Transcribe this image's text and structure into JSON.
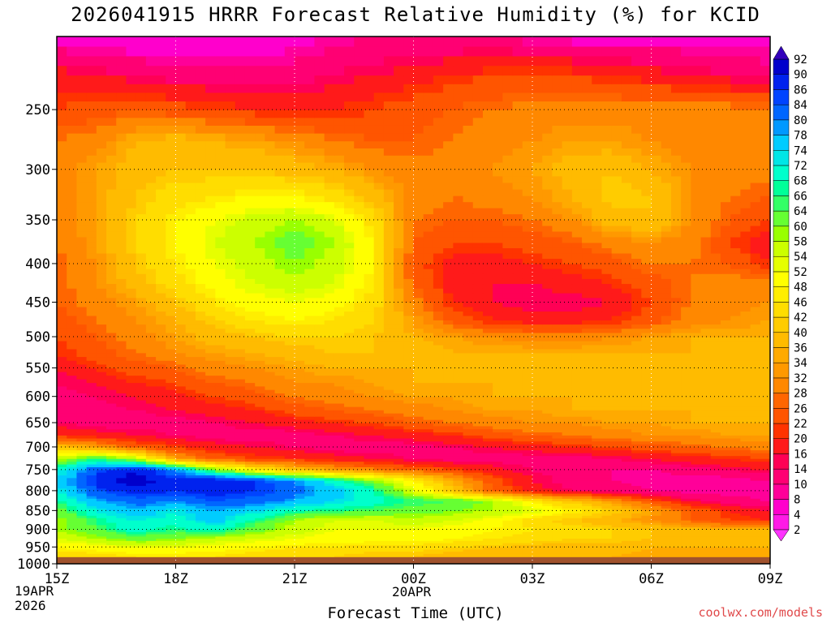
{
  "title": "2026041915 HRRR Forecast Relative Humidity (%) for KCID",
  "xlabel": "Forecast Time (UTC)",
  "credit": "coolwx.com/models",
  "x_date_left": [
    "19APR",
    "2026"
  ],
  "x_date_mid": "20APR",
  "chart_data": {
    "type": "heatmap",
    "title": "2026041915 HRRR Forecast Relative Humidity (%) for KCID",
    "xlabel": "Forecast Time (UTC)",
    "ylabel": "",
    "x_range_hours": [
      0,
      18
    ],
    "x_ticks": [
      {
        "h": 0,
        "label": "15Z"
      },
      {
        "h": 3,
        "label": "18Z"
      },
      {
        "h": 6,
        "label": "21Z"
      },
      {
        "h": 9,
        "label": "00Z"
      },
      {
        "h": 12,
        "label": "03Z"
      },
      {
        "h": 15,
        "label": "06Z"
      },
      {
        "h": 18,
        "label": "09Z"
      }
    ],
    "y_scale": "log-pressure (hPa), inverted",
    "y_range_hpa": [
      1000,
      200
    ],
    "y_ticks": [
      250,
      300,
      350,
      400,
      450,
      500,
      550,
      600,
      650,
      700,
      750,
      800,
      850,
      900,
      950,
      1000
    ],
    "grid": true,
    "surface_pressure_hpa": 980,
    "colorbar": {
      "position": "right",
      "levels": [
        2,
        4,
        8,
        10,
        14,
        16,
        20,
        22,
        26,
        28,
        32,
        34,
        36,
        40,
        42,
        46,
        48,
        52,
        54,
        58,
        60,
        64,
        66,
        68,
        72,
        74,
        78,
        80,
        84,
        86,
        90,
        92
      ],
      "colors": [
        "#ff33ff",
        "#ff1ae6",
        "#ff00cc",
        "#ff0099",
        "#ff0073",
        "#ff0055",
        "#ff1a1a",
        "#ff3300",
        "#ff5500",
        "#ff6600",
        "#ff8800",
        "#ff9900",
        "#ffaa00",
        "#ffbb00",
        "#ffcc00",
        "#ffdd00",
        "#ffee00",
        "#ffff00",
        "#e6ff00",
        "#ccff00",
        "#99ff00",
        "#66ff33",
        "#33ff66",
        "#00ff99",
        "#00ffcc",
        "#00e6e6",
        "#00ccff",
        "#0099ff",
        "#0066ff",
        "#0044ff",
        "#0022ee",
        "#0000cc",
        "#3300bb"
      ]
    },
    "hours": [
      0,
      1,
      2,
      3,
      4,
      5,
      6,
      7,
      8,
      9,
      10,
      11,
      12,
      13,
      14,
      15,
      16,
      17,
      18
    ],
    "pressure_levels_hpa": [
      975,
      950,
      925,
      900,
      875,
      850,
      825,
      800,
      775,
      750,
      725,
      700,
      675,
      650,
      625,
      600,
      575,
      550,
      525,
      500,
      475,
      450,
      425,
      400,
      375,
      350,
      325,
      300,
      275,
      250,
      225,
      200
    ],
    "rh_percent": [
      [
        44,
        44,
        46,
        46,
        46,
        44,
        42,
        42,
        40,
        40,
        38,
        36,
        36,
        36,
        36,
        34,
        34,
        34,
        36
      ],
      [
        48,
        50,
        52,
        52,
        50,
        48,
        46,
        46,
        44,
        44,
        42,
        40,
        38,
        38,
        38,
        36,
        36,
        36,
        36
      ],
      [
        54,
        58,
        62,
        60,
        56,
        54,
        52,
        50,
        50,
        50,
        48,
        46,
        44,
        42,
        42,
        40,
        40,
        40,
        40
      ],
      [
        58,
        64,
        70,
        66,
        70,
        62,
        56,
        52,
        52,
        52,
        50,
        48,
        46,
        44,
        42,
        40,
        38,
        36,
        36
      ],
      [
        58,
        66,
        72,
        70,
        76,
        66,
        58,
        54,
        54,
        56,
        54,
        50,
        44,
        40,
        36,
        32,
        26,
        22,
        20
      ],
      [
        62,
        72,
        78,
        72,
        78,
        74,
        68,
        66,
        64,
        62,
        60,
        58,
        54,
        48,
        42,
        34,
        26,
        20,
        16
      ],
      [
        66,
        78,
        82,
        80,
        84,
        82,
        78,
        74,
        70,
        66,
        64,
        58,
        48,
        40,
        32,
        24,
        16,
        12,
        10
      ],
      [
        72,
        84,
        88,
        86,
        88,
        86,
        82,
        76,
        68,
        54,
        40,
        26,
        18,
        14,
        12,
        10,
        8,
        8,
        8
      ],
      [
        74,
        88,
        92,
        88,
        90,
        86,
        80,
        70,
        60,
        48,
        36,
        24,
        16,
        12,
        10,
        8,
        8,
        8,
        10
      ],
      [
        70,
        84,
        90,
        80,
        62,
        48,
        40,
        34,
        30,
        26,
        22,
        18,
        14,
        12,
        10,
        10,
        12,
        14,
        16
      ],
      [
        56,
        66,
        58,
        34,
        26,
        22,
        20,
        18,
        16,
        14,
        12,
        12,
        12,
        12,
        14,
        16,
        18,
        20,
        22
      ],
      [
        40,
        34,
        26,
        22,
        18,
        16,
        14,
        12,
        12,
        12,
        14,
        16,
        18,
        20,
        22,
        24,
        26,
        28,
        30
      ],
      [
        20,
        18,
        16,
        14,
        12,
        12,
        12,
        14,
        16,
        18,
        20,
        24,
        26,
        28,
        30,
        32,
        32,
        34,
        34
      ],
      [
        14,
        12,
        12,
        12,
        14,
        16,
        18,
        20,
        22,
        26,
        28,
        30,
        32,
        32,
        34,
        34,
        36,
        36,
        36
      ],
      [
        12,
        12,
        14,
        16,
        18,
        20,
        24,
        26,
        28,
        30,
        32,
        34,
        34,
        36,
        36,
        36,
        36,
        38,
        38
      ],
      [
        12,
        14,
        16,
        18,
        22,
        24,
        28,
        30,
        32,
        34,
        34,
        36,
        36,
        36,
        36,
        36,
        36,
        38,
        38
      ],
      [
        14,
        16,
        20,
        22,
        26,
        28,
        32,
        32,
        34,
        36,
        36,
        36,
        36,
        38,
        38,
        38,
        38,
        38,
        38
      ],
      [
        16,
        20,
        24,
        26,
        30,
        32,
        34,
        36,
        36,
        36,
        36,
        36,
        38,
        38,
        38,
        38,
        38,
        38,
        38
      ],
      [
        20,
        24,
        28,
        32,
        34,
        36,
        38,
        40,
        40,
        38,
        36,
        36,
        36,
        36,
        36,
        36,
        36,
        36,
        36
      ],
      [
        22,
        26,
        30,
        34,
        38,
        40,
        42,
        42,
        40,
        36,
        34,
        32,
        30,
        30,
        32,
        34,
        36,
        36,
        36
      ],
      [
        24,
        28,
        32,
        36,
        42,
        46,
        48,
        46,
        42,
        34,
        24,
        20,
        18,
        18,
        20,
        24,
        30,
        32,
        34
      ],
      [
        26,
        30,
        34,
        40,
        46,
        50,
        52,
        50,
        44,
        30,
        20,
        16,
        14,
        14,
        16,
        22,
        28,
        30,
        32
      ],
      [
        26,
        32,
        38,
        44,
        50,
        54,
        56,
        54,
        46,
        26,
        18,
        16,
        16,
        18,
        20,
        24,
        28,
        30,
        30
      ],
      [
        26,
        32,
        40,
        46,
        52,
        56,
        60,
        56,
        48,
        24,
        18,
        18,
        20,
        22,
        24,
        28,
        28,
        26,
        20
      ],
      [
        28,
        34,
        42,
        48,
        54,
        58,
        62,
        58,
        48,
        26,
        22,
        22,
        24,
        26,
        30,
        32,
        30,
        22,
        16
      ],
      [
        30,
        34,
        42,
        48,
        52,
        56,
        58,
        54,
        44,
        28,
        26,
        26,
        28,
        32,
        38,
        40,
        32,
        26,
        22
      ],
      [
        30,
        34,
        40,
        44,
        46,
        48,
        48,
        44,
        38,
        30,
        28,
        30,
        32,
        36,
        42,
        40,
        32,
        28,
        26
      ],
      [
        30,
        34,
        38,
        40,
        40,
        40,
        38,
        36,
        32,
        30,
        30,
        32,
        34,
        38,
        40,
        36,
        32,
        30,
        30
      ],
      [
        28,
        30,
        36,
        38,
        36,
        34,
        32,
        28,
        26,
        26,
        28,
        30,
        32,
        34,
        34,
        32,
        30,
        30,
        30
      ],
      [
        22,
        24,
        26,
        24,
        22,
        20,
        20,
        20,
        22,
        24,
        26,
        28,
        30,
        30,
        30,
        30,
        30,
        30,
        30
      ],
      [
        18,
        16,
        14,
        12,
        12,
        12,
        12,
        14,
        16,
        18,
        20,
        22,
        22,
        22,
        20,
        18,
        16,
        14,
        12
      ],
      [
        6,
        4,
        4,
        4,
        4,
        4,
        6,
        8,
        10,
        10,
        10,
        10,
        8,
        6,
        6,
        6,
        6,
        6,
        6
      ]
    ]
  }
}
